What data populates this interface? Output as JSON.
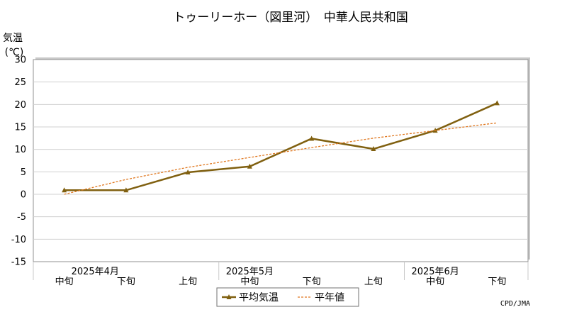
{
  "chart_data": {
    "type": "line",
    "title": "トゥーリーホー（図里河）　中華人民共和国",
    "ylabel_line1": "気温",
    "ylabel_line2": "(℃)",
    "ylim": [
      -15,
      30
    ],
    "yticks": [
      30,
      25,
      20,
      15,
      10,
      5,
      0,
      -5,
      -10,
      -15
    ],
    "categories": [
      "中旬",
      "下旬",
      "上旬",
      "中旬",
      "下旬",
      "上旬",
      "中旬",
      "下旬"
    ],
    "month_labels": [
      {
        "label": "2025年4月",
        "center_index": 0.5
      },
      {
        "label": "2025年5月",
        "center_index": 3
      },
      {
        "label": "2025年6月",
        "center_index": 6
      }
    ],
    "series": [
      {
        "name": "平均気温",
        "color": "#806010",
        "style": "solid-marker",
        "values": [
          0.9,
          0.9,
          4.9,
          6.2,
          12.4,
          10.1,
          14.2,
          20.3
        ]
      },
      {
        "name": "平年値",
        "color": "#e07820",
        "style": "dashed",
        "values": [
          0.0,
          3.3,
          6.0,
          8.2,
          10.4,
          12.5,
          14.2,
          15.9
        ]
      }
    ],
    "grid": true,
    "legend_position": "bottom-center",
    "credit": "CPD/JMA"
  }
}
